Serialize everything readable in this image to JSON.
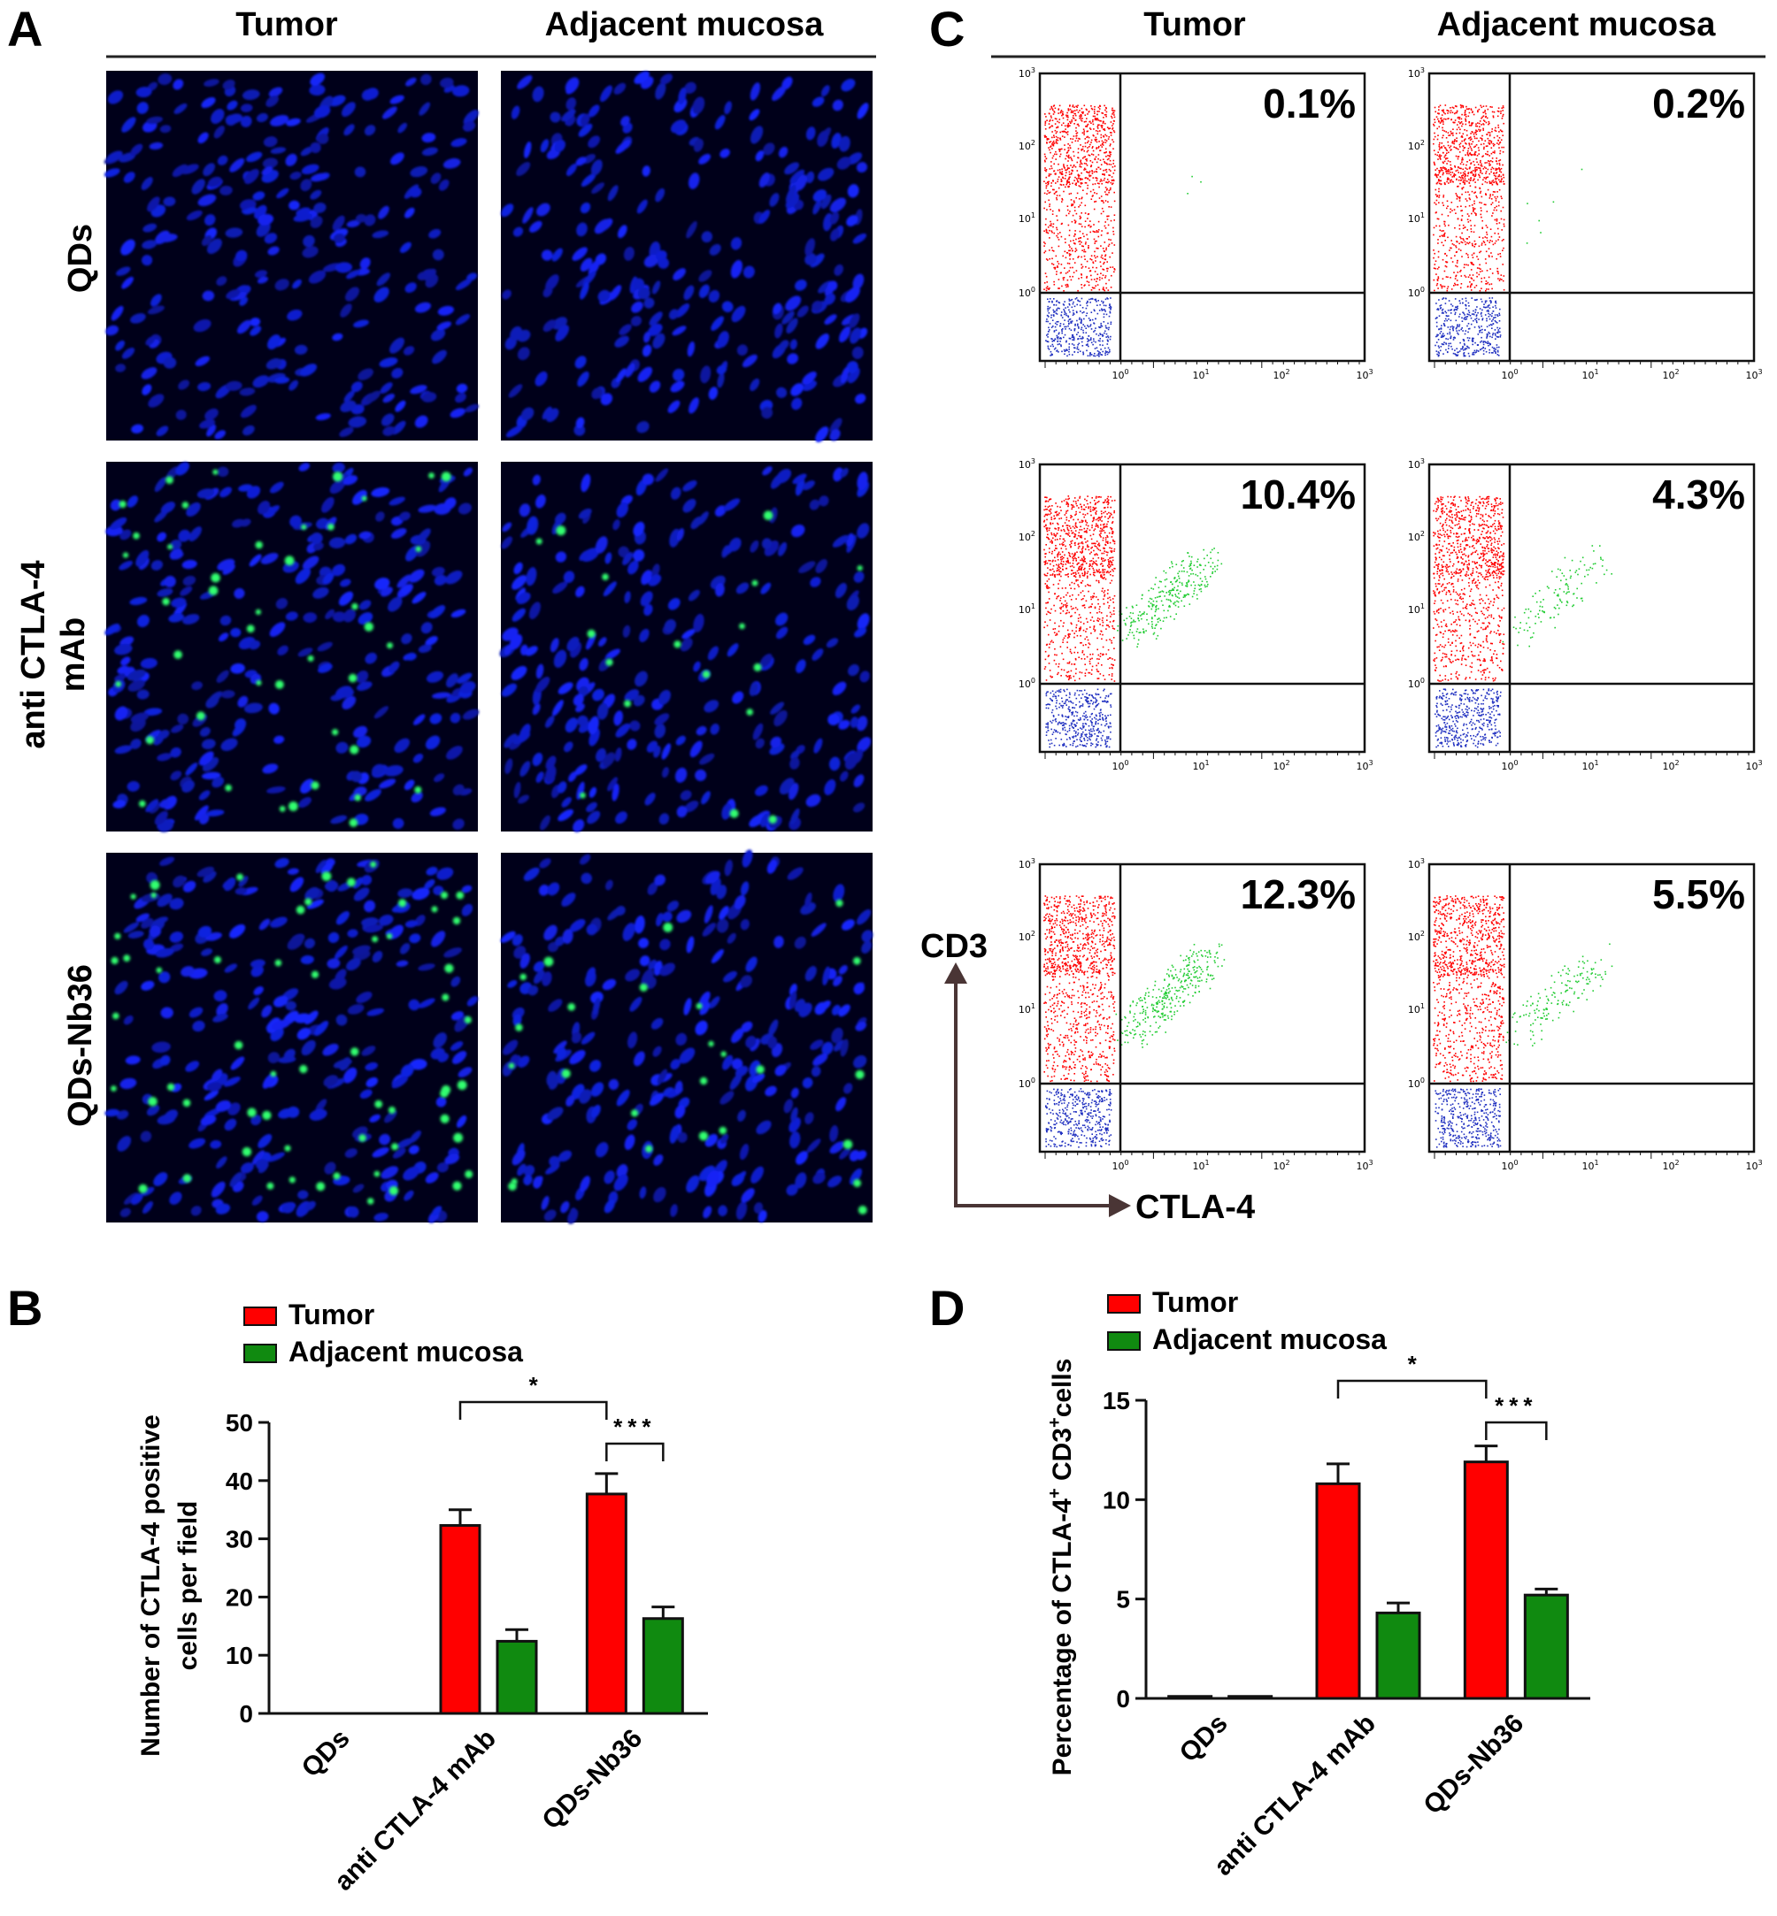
{
  "panels": {
    "a": {
      "letter": "A",
      "col_headers": [
        "Tumor",
        "Adjacent mucosa"
      ],
      "row_labels": [
        [
          "QDs"
        ],
        [
          "anti CTLA-4",
          "mAb"
        ],
        [
          "QDs-Nb36"
        ]
      ],
      "green_cell_density": [
        [
          0,
          0
        ],
        [
          1,
          0.4
        ],
        [
          1.4,
          0.6
        ]
      ]
    },
    "b": {
      "letter": "B"
    },
    "c": {
      "letter": "C",
      "col_headers": [
        "Tumor",
        "Adjacent mucosa"
      ],
      "percentages": [
        [
          "0.1%",
          "0.2%"
        ],
        [
          "10.4%",
          "4.3%"
        ],
        [
          "12.3%",
          "5.5%"
        ]
      ],
      "axis_tick_labels": [
        "10",
        "10",
        "10",
        "10"
      ],
      "axis_tick_exponents": [
        "0",
        "1",
        "2",
        "3"
      ],
      "y_axis_label": "CD3",
      "x_axis_label": "CTLA-4"
    },
    "d": {
      "letter": "D"
    }
  },
  "colors": {
    "tumor": "#ff0000",
    "adjacent": "#108a10",
    "nuclei": "#1428ff",
    "positive_cells": "#30ff70",
    "cd3_negative": "#2030c0",
    "axis_arrow": "#4a3535"
  },
  "chart_data": [
    {
      "type": "bar",
      "panel": "B",
      "categories": [
        "QDs",
        "anti CTLA-4 mAb",
        "QDs-Nb36"
      ],
      "series": [
        {
          "name": "Tumor",
          "values": [
            0,
            32.3,
            37.7
          ],
          "errors": [
            0,
            2.7,
            3.5
          ]
        },
        {
          "name": "Adjacent mucosa",
          "values": [
            0,
            12.4,
            16.3
          ],
          "errors": [
            0,
            2.0,
            2.0
          ]
        }
      ],
      "ylabel": "Number of CTLA-4 positive cells per field",
      "ylim": [
        0,
        50
      ],
      "yticks": [
        "0",
        "10",
        "20",
        "30",
        "40",
        "50"
      ],
      "legend_position": "top-left",
      "significance": [
        {
          "label": "*",
          "from": "anti CTLA-4 mAb Tumor",
          "to": "QDs-Nb36 Tumor"
        },
        {
          "label": "***",
          "from": "QDs-Nb36 Tumor",
          "to": "QDs-Nb36 Adjacent mucosa"
        }
      ]
    },
    {
      "type": "bar",
      "panel": "D",
      "categories": [
        "QDs",
        "anti CTLA-4 mAb",
        "QDs-Nb36"
      ],
      "series": [
        {
          "name": "Tumor",
          "values": [
            0.1,
            10.8,
            11.9
          ],
          "errors": [
            0,
            1.0,
            0.8
          ]
        },
        {
          "name": "Adjacent mucosa",
          "values": [
            0.1,
            4.3,
            5.2
          ],
          "errors": [
            0,
            0.5,
            0.3
          ]
        }
      ],
      "ylabel_parts": [
        "Percentage of CTLA-4",
        "+",
        " CD3",
        "+",
        "cells"
      ],
      "ylim": [
        0,
        15
      ],
      "yticks": [
        "0",
        "5",
        "10",
        "15"
      ],
      "legend_position": "top-left",
      "significance": [
        {
          "label": "*",
          "from": "anti CTLA-4 mAb Tumor",
          "to": "QDs-Nb36 Tumor"
        },
        {
          "label": "***",
          "from": "QDs-Nb36 Tumor",
          "to": "QDs-Nb36 Adjacent mucosa"
        }
      ]
    }
  ]
}
